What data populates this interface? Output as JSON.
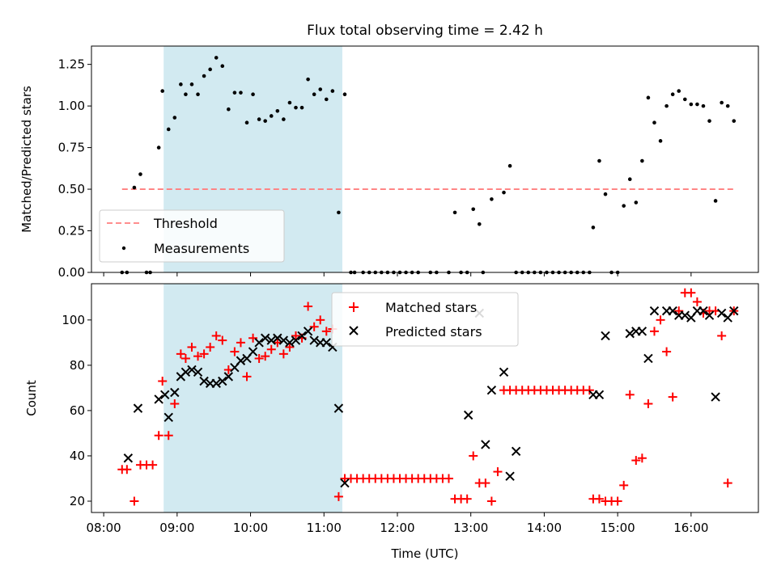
{
  "title": "Flux total observing time = 2.42 h",
  "colors": {
    "shade": "#add8e6",
    "threshold": "#ff7f7f",
    "measurement": "#000000",
    "matched": "#ff0000",
    "predicted": "#000000"
  },
  "chart_data": [
    {
      "type": "scatter",
      "panel": "top",
      "ylabel": "Matched/Predicted stars",
      "ylim": [
        0,
        1.36
      ],
      "yticks": [
        0,
        0.25,
        0.5,
        0.75,
        1.0,
        1.25
      ],
      "ytick_labels": [
        "0.00",
        "0.25",
        "0.50",
        "0.75",
        "1.00",
        "1.25"
      ],
      "shaded_interval": [
        "08:49",
        "11:15"
      ],
      "threshold": {
        "name": "Threshold",
        "value": 0.5,
        "x_range": [
          "08:15",
          "16:35"
        ],
        "style": "dashed"
      },
      "legend": {
        "position": "lower-left",
        "entries": [
          "Threshold",
          "Measurements"
        ]
      },
      "series": [
        {
          "name": "Measurements",
          "x": [
            "08:15",
            "08:19",
            "08:25",
            "08:30",
            "08:35",
            "08:38",
            "08:45",
            "08:48",
            "08:53",
            "08:58",
            "09:03",
            "09:07",
            "09:12",
            "09:17",
            "09:22",
            "09:27",
            "09:32",
            "09:37",
            "09:42",
            "09:47",
            "09:52",
            "09:57",
            "10:02",
            "10:07",
            "10:12",
            "10:17",
            "10:22",
            "10:27",
            "10:32",
            "10:37",
            "10:42",
            "10:47",
            "10:52",
            "10:57",
            "11:02",
            "11:07",
            "11:12",
            "11:17",
            "11:22",
            "11:25",
            "11:32",
            "11:37",
            "11:42",
            "11:47",
            "11:52",
            "11:57",
            "12:02",
            "12:07",
            "12:12",
            "12:17",
            "12:27",
            "12:32",
            "12:42",
            "12:47",
            "12:52",
            "12:57",
            "13:02",
            "13:07",
            "13:10",
            "13:17",
            "13:27",
            "13:32",
            "13:37",
            "13:42",
            "13:47",
            "13:52",
            "13:57",
            "14:02",
            "14:07",
            "14:12",
            "14:17",
            "14:22",
            "14:27",
            "14:32",
            "14:37",
            "14:40",
            "14:45",
            "14:50",
            "14:55",
            "15:00",
            "15:05",
            "15:10",
            "15:15",
            "15:20",
            "15:25",
            "15:30",
            "15:35",
            "15:40",
            "15:45",
            "15:50",
            "15:55",
            "16:00",
            "16:05",
            "16:10",
            "16:15",
            "16:20",
            "16:25",
            "16:30",
            "16:35"
          ],
          "y": [
            0,
            0,
            0.51,
            0.59,
            0,
            0,
            0.75,
            1.09,
            0.86,
            0.93,
            1.13,
            1.07,
            1.13,
            1.07,
            1.18,
            1.22,
            1.29,
            1.24,
            0.98,
            1.08,
            1.08,
            0.9,
            1.07,
            0.92,
            0.91,
            0.94,
            0.97,
            0.92,
            1.02,
            0.99,
            0.99,
            1.16,
            1.07,
            1.1,
            1.04,
            1.09,
            0.36,
            1.07,
            0,
            0,
            0,
            0,
            0,
            0,
            0,
            0,
            0,
            0,
            0,
            0,
            0,
            0,
            0,
            0.36,
            0,
            0,
            0.38,
            0.29,
            0,
            0.44,
            0.48,
            0.64,
            0,
            0,
            0,
            0,
            0,
            0,
            0,
            0,
            0,
            0,
            0,
            0,
            0,
            0.27,
            0.67,
            0.47,
            0,
            0,
            0.4,
            0.56,
            0.42,
            0.67,
            1.05,
            0.9,
            0.79,
            1.0,
            1.07,
            1.09,
            1.04,
            1.01,
            1.01,
            1.0,
            0.91,
            0.43,
            1.02,
            1.0,
            0.91
          ]
        }
      ]
    },
    {
      "type": "scatter",
      "panel": "bottom",
      "xlabel": "Time (UTC)",
      "ylabel": "Count",
      "ylim": [
        15,
        116
      ],
      "yticks": [
        20,
        40,
        60,
        80,
        100
      ],
      "xlim": [
        "07:50",
        "16:55"
      ],
      "xticks": [
        "08:00",
        "09:00",
        "10:00",
        "11:00",
        "12:00",
        "13:00",
        "14:00",
        "15:00",
        "16:00"
      ],
      "shaded_interval": [
        "08:49",
        "11:15"
      ],
      "legend": {
        "position": "upper-center",
        "entries": [
          "Matched stars",
          "Predicted stars"
        ]
      },
      "series": [
        {
          "name": "Matched stars",
          "marker": "plus",
          "x": [
            "08:15",
            "08:19",
            "08:25",
            "08:30",
            "08:35",
            "08:40",
            "08:45",
            "08:48",
            "08:53",
            "08:58",
            "09:03",
            "09:07",
            "09:12",
            "09:17",
            "09:22",
            "09:27",
            "09:32",
            "09:37",
            "09:42",
            "09:47",
            "09:52",
            "09:57",
            "10:02",
            "10:07",
            "10:12",
            "10:17",
            "10:22",
            "10:27",
            "10:32",
            "10:37",
            "10:42",
            "10:47",
            "10:52",
            "10:57",
            "11:02",
            "11:07",
            "11:12",
            "11:17",
            "11:22",
            "11:27",
            "11:32",
            "11:37",
            "11:42",
            "11:47",
            "11:52",
            "11:57",
            "12:02",
            "12:07",
            "12:12",
            "12:17",
            "12:22",
            "12:27",
            "12:32",
            "12:37",
            "12:42",
            "12:47",
            "12:52",
            "12:57",
            "13:02",
            "13:07",
            "13:12",
            "13:17",
            "13:22",
            "13:27",
            "13:32",
            "13:37",
            "13:42",
            "13:47",
            "13:52",
            "13:57",
            "14:02",
            "14:07",
            "14:12",
            "14:17",
            "14:22",
            "14:27",
            "14:32",
            "14:37",
            "14:40",
            "14:45",
            "14:50",
            "14:55",
            "15:00",
            "15:05",
            "15:10",
            "15:15",
            "15:20",
            "15:25",
            "15:30",
            "15:35",
            "15:40",
            "15:45",
            "15:50",
            "15:55",
            "16:00",
            "16:05",
            "16:10",
            "16:15",
            "16:20",
            "16:25",
            "16:30",
            "16:35"
          ],
          "y": [
            34,
            34,
            20,
            36,
            36,
            36,
            49,
            73,
            49,
            63,
            85,
            83,
            88,
            84,
            85,
            88,
            93,
            91,
            78,
            86,
            90,
            75,
            92,
            83,
            84,
            87,
            90,
            85,
            88,
            93,
            92,
            106,
            97,
            100,
            95,
            96,
            22,
            30,
            30,
            30,
            30,
            30,
            30,
            30,
            30,
            30,
            30,
            30,
            30,
            30,
            30,
            30,
            30,
            30,
            30,
            21,
            21,
            21,
            40,
            28,
            28,
            20,
            33,
            69,
            69,
            69,
            69,
            69,
            69,
            69,
            69,
            69,
            69,
            69,
            69,
            69,
            69,
            69,
            21,
            21,
            20,
            20,
            20,
            27,
            67,
            38,
            39,
            63,
            95,
            100,
            86,
            66,
            104,
            112,
            112,
            108,
            103,
            104,
            104,
            93,
            28,
            104
          ]
        },
        {
          "name": "Predicted stars",
          "marker": "x",
          "x": [
            "08:20",
            "08:28",
            "08:45",
            "08:50",
            "08:53",
            "08:58",
            "09:03",
            "09:07",
            "09:12",
            "09:17",
            "09:22",
            "09:27",
            "09:32",
            "09:37",
            "09:42",
            "09:47",
            "09:52",
            "09:57",
            "10:02",
            "10:07",
            "10:12",
            "10:17",
            "10:22",
            "10:27",
            "10:32",
            "10:37",
            "10:42",
            "10:47",
            "10:52",
            "10:57",
            "11:02",
            "11:07",
            "11:12",
            "11:17",
            "12:58",
            "13:07",
            "13:12",
            "13:17",
            "13:27",
            "13:32",
            "13:37",
            "14:40",
            "14:45",
            "14:50",
            "15:10",
            "15:15",
            "15:20",
            "15:25",
            "15:30",
            "15:40",
            "15:45",
            "15:50",
            "15:55",
            "16:00",
            "16:05",
            "16:10",
            "16:15",
            "16:20",
            "16:25",
            "16:30",
            "16:35"
          ],
          "y": [
            39,
            61,
            65,
            67,
            57,
            68,
            75,
            77,
            78,
            77,
            73,
            72,
            72,
            73,
            75,
            79,
            82,
            83,
            86,
            90,
            92,
            91,
            92,
            91,
            90,
            91,
            93,
            95,
            91,
            90,
            90,
            88,
            61,
            28,
            58,
            103,
            45,
            69,
            77,
            31,
            42,
            67,
            67,
            93,
            94,
            95,
            95,
            83,
            104,
            104,
            104,
            102,
            102,
            101,
            104,
            104,
            102,
            66,
            103,
            101,
            104
          ]
        }
      ]
    }
  ]
}
